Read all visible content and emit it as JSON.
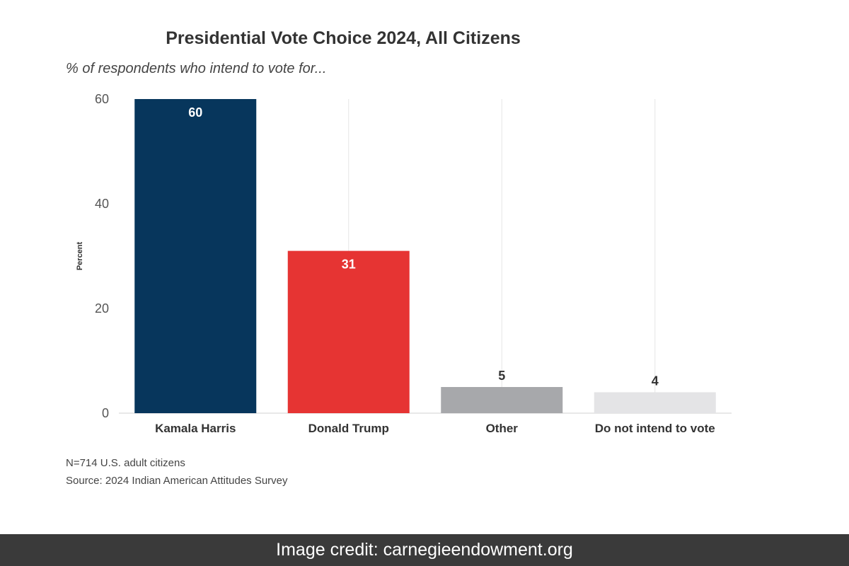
{
  "chart_data": {
    "type": "bar",
    "title": "Presidential Vote Choice 2024, All Citizens",
    "subtitle": "% of respondents who intend to vote for...",
    "xlabel": "",
    "ylabel": "Percent",
    "ylim": [
      0,
      60
    ],
    "yticks": [
      0,
      20,
      40,
      60
    ],
    "categories": [
      "Kamala Harris",
      "Donald Trump",
      "Other",
      "Do not intend to vote"
    ],
    "values": [
      60,
      31,
      5,
      4
    ],
    "value_labels": [
      "60",
      "31",
      "5",
      "4"
    ],
    "colors": [
      "#07365c",
      "#e63433",
      "#a7a8ab",
      "#e4e4e6"
    ],
    "label_colors": [
      "#ffffff",
      "#ffffff",
      "#333333",
      "#333333"
    ],
    "label_inside": [
      true,
      true,
      false,
      false
    ],
    "grid": true
  },
  "notes": {
    "sample": "N=714 U.S. adult citizens",
    "source": "Source: 2024 Indian American Attitudes Survey"
  },
  "credit": {
    "text": "Image credit: carnegieendowment.org"
  }
}
